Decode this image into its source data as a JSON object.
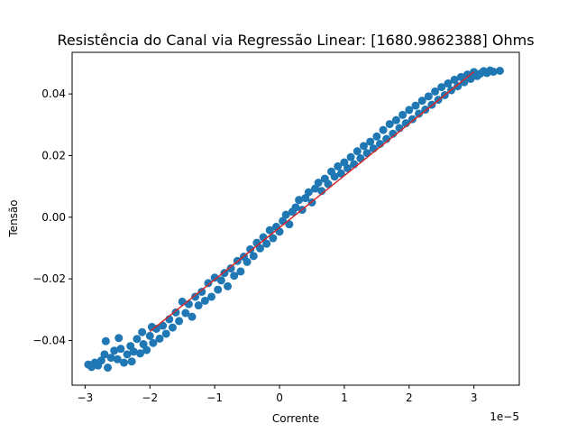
{
  "chart_data": {
    "type": "scatter",
    "title": "Resistência do Canal via Regressão Linear: [1680.9862388] Ohms",
    "xlabel": "Corrente",
    "ylabel": "Tensão",
    "x_offset_text": "1e−5",
    "xlim": [
      -3.2,
      3.7
    ],
    "ylim": [
      -0.0545,
      0.0535
    ],
    "x_ticks": [
      -3,
      -2,
      -1,
      0,
      1,
      2,
      3
    ],
    "x_tick_labels": [
      "−3",
      "−2",
      "−1",
      "0",
      "1",
      "2",
      "3"
    ],
    "y_ticks": [
      -0.04,
      -0.02,
      0.0,
      0.02,
      0.04
    ],
    "y_tick_labels": [
      "−0.04",
      "−0.02",
      "0.00",
      "0.02",
      "0.04"
    ],
    "grid": false,
    "series": [
      {
        "kind": "scatter",
        "color": "#1f77b4",
        "points": [
          [
            -2.95,
            -0.0478
          ],
          [
            -2.9,
            -0.0486
          ],
          [
            -2.85,
            -0.0472
          ],
          [
            -2.8,
            -0.0481
          ],
          [
            -2.75,
            -0.0465
          ],
          [
            -2.7,
            -0.0445
          ],
          [
            -2.68,
            -0.0402
          ],
          [
            -2.65,
            -0.0488
          ],
          [
            -2.6,
            -0.0456
          ],
          [
            -2.55,
            -0.0433
          ],
          [
            -2.5,
            -0.0461
          ],
          [
            -2.48,
            -0.0392
          ],
          [
            -2.45,
            -0.0427
          ],
          [
            -2.4,
            -0.0472
          ],
          [
            -2.35,
            -0.0445
          ],
          [
            -2.3,
            -0.0418
          ],
          [
            -2.28,
            -0.0468
          ],
          [
            -2.25,
            -0.0436
          ],
          [
            -2.2,
            -0.0395
          ],
          [
            -2.15,
            -0.0442
          ],
          [
            -2.12,
            -0.0373
          ],
          [
            -2.1,
            -0.0412
          ],
          [
            -2.05,
            -0.0431
          ],
          [
            -2.0,
            -0.0385
          ],
          [
            -1.97,
            -0.0356
          ],
          [
            -1.95,
            -0.0408
          ],
          [
            -1.9,
            -0.0362
          ],
          [
            -1.85,
            -0.0394
          ],
          [
            -1.8,
            -0.0352
          ],
          [
            -1.75,
            -0.0378
          ],
          [
            -1.7,
            -0.0331
          ],
          [
            -1.65,
            -0.0358
          ],
          [
            -1.6,
            -0.0309
          ],
          [
            -1.55,
            -0.0337
          ],
          [
            -1.5,
            -0.0274
          ],
          [
            -1.45,
            -0.0311
          ],
          [
            -1.4,
            -0.0282
          ],
          [
            -1.35,
            -0.0323
          ],
          [
            -1.3,
            -0.0258
          ],
          [
            -1.25,
            -0.0286
          ],
          [
            -1.2,
            -0.0242
          ],
          [
            -1.15,
            -0.0271
          ],
          [
            -1.1,
            -0.0214
          ],
          [
            -1.05,
            -0.0258
          ],
          [
            -1.0,
            -0.0196
          ],
          [
            -0.95,
            -0.0235
          ],
          [
            -0.9,
            -0.0205
          ],
          [
            -0.85,
            -0.0181
          ],
          [
            -0.8,
            -0.0224
          ],
          [
            -0.75,
            -0.0166
          ],
          [
            -0.7,
            -0.019
          ],
          [
            -0.65,
            -0.0142
          ],
          [
            -0.6,
            -0.0176
          ],
          [
            -0.55,
            -0.0128
          ],
          [
            -0.5,
            -0.0145
          ],
          [
            -0.45,
            -0.0104
          ],
          [
            -0.4,
            -0.0126
          ],
          [
            -0.35,
            -0.0083
          ],
          [
            -0.3,
            -0.0101
          ],
          [
            -0.25,
            -0.0065
          ],
          [
            -0.2,
            -0.0086
          ],
          [
            -0.15,
            -0.0042
          ],
          [
            -0.1,
            -0.0068
          ],
          [
            -0.05,
            -0.0031
          ],
          [
            0.0,
            -0.0047
          ],
          [
            0.05,
            -0.0012
          ],
          [
            0.1,
            0.0008
          ],
          [
            0.15,
            -0.0023
          ],
          [
            0.2,
            0.0018
          ],
          [
            0.25,
            0.0032
          ],
          [
            0.3,
            0.0056
          ],
          [
            0.35,
            0.0024
          ],
          [
            0.4,
            0.0062
          ],
          [
            0.45,
            0.0081
          ],
          [
            0.5,
            0.0048
          ],
          [
            0.55,
            0.0093
          ],
          [
            0.6,
            0.0112
          ],
          [
            0.65,
            0.0085
          ],
          [
            0.7,
            0.0125
          ],
          [
            0.75,
            0.0108
          ],
          [
            0.8,
            0.0148
          ],
          [
            0.85,
            0.0132
          ],
          [
            0.9,
            0.0165
          ],
          [
            0.95,
            0.0142
          ],
          [
            1.0,
            0.0178
          ],
          [
            1.05,
            0.0159
          ],
          [
            1.1,
            0.0195
          ],
          [
            1.15,
            0.0172
          ],
          [
            1.2,
            0.0214
          ],
          [
            1.25,
            0.0191
          ],
          [
            1.3,
            0.0231
          ],
          [
            1.35,
            0.0208
          ],
          [
            1.4,
            0.0245
          ],
          [
            1.45,
            0.0223
          ],
          [
            1.5,
            0.0262
          ],
          [
            1.55,
            0.0238
          ],
          [
            1.6,
            0.0283
          ],
          [
            1.65,
            0.0254
          ],
          [
            1.7,
            0.0302
          ],
          [
            1.75,
            0.0271
          ],
          [
            1.8,
            0.0315
          ],
          [
            1.85,
            0.0289
          ],
          [
            1.9,
            0.0332
          ],
          [
            1.95,
            0.0305
          ],
          [
            2.0,
            0.0348
          ],
          [
            2.05,
            0.0318
          ],
          [
            2.1,
            0.0362
          ],
          [
            2.15,
            0.0336
          ],
          [
            2.2,
            0.0378
          ],
          [
            2.25,
            0.0349
          ],
          [
            2.3,
            0.0392
          ],
          [
            2.35,
            0.0365
          ],
          [
            2.4,
            0.0408
          ],
          [
            2.45,
            0.0381
          ],
          [
            2.5,
            0.0422
          ],
          [
            2.55,
            0.0396
          ],
          [
            2.6,
            0.0434
          ],
          [
            2.65,
            0.0412
          ],
          [
            2.7,
            0.0446
          ],
          [
            2.75,
            0.0425
          ],
          [
            2.8,
            0.0455
          ],
          [
            2.85,
            0.0438
          ],
          [
            2.9,
            0.0463
          ],
          [
            2.95,
            0.0449
          ],
          [
            3.0,
            0.0471
          ],
          [
            3.05,
            0.0458
          ],
          [
            3.1,
            0.0466
          ],
          [
            3.15,
            0.0474
          ],
          [
            3.2,
            0.0468
          ],
          [
            3.25,
            0.0476
          ],
          [
            3.3,
            0.0472
          ],
          [
            3.4,
            0.0475
          ]
        ]
      },
      {
        "kind": "line",
        "color": "#d62728",
        "points": [
          [
            -2.0,
            -0.0371
          ],
          [
            3.0,
            0.0472
          ]
        ]
      }
    ]
  }
}
